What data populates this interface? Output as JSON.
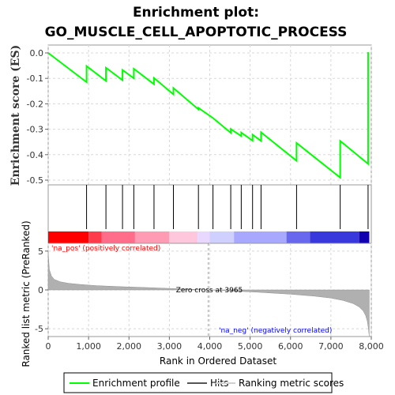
{
  "chart_data": {
    "type": "line",
    "title_line1": "Enrichment plot:",
    "title_line2": "GO_MUSCLE_CELL_APOPTOTIC_PROCESS",
    "es_ylabel": "Enrichment score (ES)",
    "metric_ylabel": "Ranked list metric (PreRanked)",
    "xlabel": "Rank in Ordered Dataset",
    "xlim": [
      0,
      8000
    ],
    "es_ylim": [
      -0.5,
      0.0
    ],
    "metric_ylim": [
      -6,
      6
    ],
    "x_ticks": [
      0,
      1000,
      2000,
      3000,
      4000,
      5000,
      6000,
      7000,
      8000
    ],
    "x_tick_labels": [
      "0",
      "1,000",
      "2,000",
      "3,000",
      "4,000",
      "5,000",
      "6,000",
      "7,000",
      "8,000"
    ],
    "es_ticks": [
      0.0,
      -0.1,
      -0.2,
      -0.3,
      -0.4,
      -0.5
    ],
    "es_tick_labels": [
      "0.0",
      "-0.1",
      "-0.2",
      "-0.3",
      "-0.4",
      "-0.5"
    ],
    "metric_ticks": [
      5,
      0,
      -5
    ],
    "metric_tick_labels": [
      "5",
      "0",
      "-5"
    ],
    "total_genes": 7950,
    "hits": [
      950,
      1430,
      1840,
      2120,
      2620,
      3100,
      3720,
      4080,
      4520,
      4780,
      5060,
      5270,
      6150,
      7230,
      7920
    ],
    "es_profile": {
      "x": [
        0,
        950,
        950,
        1430,
        1430,
        1840,
        1840,
        2120,
        2120,
        2620,
        2620,
        3100,
        3100,
        3720,
        3720,
        4080,
        4080,
        4520,
        4520,
        4780,
        4780,
        5060,
        5060,
        5270,
        5270,
        6150,
        6150,
        7230,
        7230,
        7920,
        7920
      ],
      "y": [
        0.0,
        -0.115,
        -0.052,
        -0.11,
        -0.058,
        -0.107,
        -0.067,
        -0.1,
        -0.062,
        -0.123,
        -0.098,
        -0.163,
        -0.138,
        -0.222,
        -0.216,
        -0.256,
        -0.256,
        -0.314,
        -0.299,
        -0.327,
        -0.313,
        -0.345,
        -0.321,
        -0.346,
        -0.312,
        -0.424,
        -0.354,
        -0.49,
        -0.346,
        -0.436,
        0.003
      ]
    },
    "zero_cross_rank": 3965,
    "zero_cross_label": "Zero cross at 3965",
    "pos_label": "'na_pos' (positively correlated)",
    "neg_label": "'na_neg' (negatively correlated)",
    "metric_curve": {
      "x": [
        0,
        30,
        80,
        150,
        300,
        500,
        800,
        1200,
        1800,
        2500,
        3200,
        3965,
        4500,
        5200,
        6000,
        6600,
        7000,
        7300,
        7550,
        7700,
        7800,
        7860,
        7900,
        7930,
        7950
      ],
      "y": [
        4.8,
        2.6,
        1.8,
        1.35,
        1.05,
        0.85,
        0.7,
        0.55,
        0.42,
        0.3,
        0.15,
        0.0,
        -0.12,
        -0.3,
        -0.55,
        -0.8,
        -1.05,
        -1.35,
        -1.75,
        -2.2,
        -2.7,
        -3.3,
        -4.0,
        -5.0,
        -6.0
      ]
    },
    "legend": [
      "Enrichment profile",
      "Hits",
      "Ranking metric scores"
    ],
    "colors": {
      "es_line": "#00ff00",
      "hits": "#000000",
      "metric_fill": "#b0b0b0",
      "grid": "#d8d8d8",
      "pos_text": "#ff0000",
      "neg_text": "#0000ff",
      "zero_line": "#999999",
      "heat_band": [
        "#ff0000",
        "#ff3a4a",
        "#ff6d8a",
        "#ff9cb4",
        "#ffc7dc",
        "#e8d8ff",
        "#d0d0ff",
        "#a8a8ff",
        "#6868ee",
        "#3838dd",
        "#1000b0"
      ]
    }
  }
}
